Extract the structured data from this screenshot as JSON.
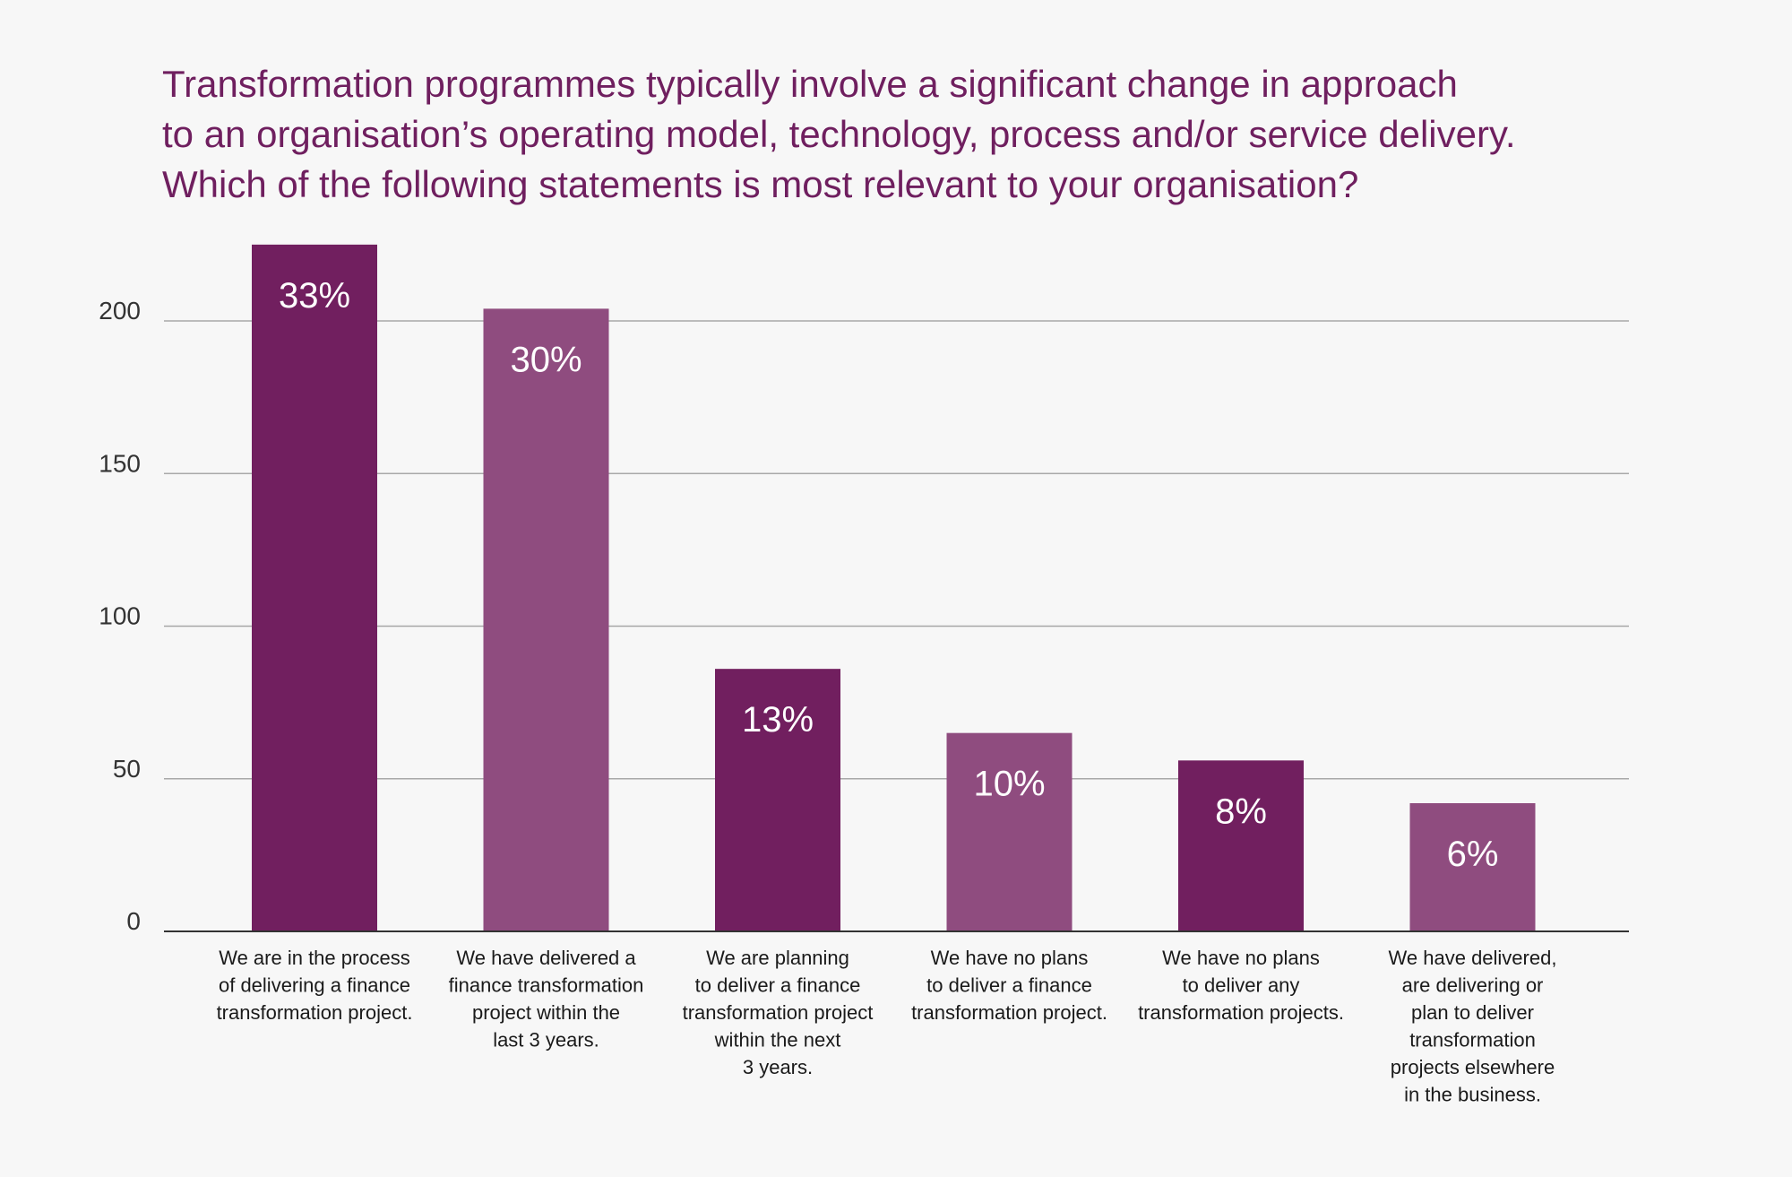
{
  "title_lines": [
    "Transformation programmes typically involve a significant change in approach",
    "to an organisation’s operating model, technology, process and/or service delivery.",
    "Which of the following statements is most relevant to your organisation?"
  ],
  "colors": {
    "dark": "#711f5f",
    "light": "#8f4c7f",
    "title": "#6f1f5f",
    "grid": "#a8a8a8",
    "axis": "#333333"
  },
  "chart_data": {
    "type": "bar",
    "title": "Transformation programmes typically involve a significant change in approach to an organisation’s operating model, technology, process and/or service delivery. Which of the following statements is most relevant to your organisation?",
    "xlabel": "",
    "ylabel": "",
    "ylim": [
      0,
      200
    ],
    "yticks": [
      0,
      50,
      100,
      150,
      200
    ],
    "grid": true,
    "categories": [
      [
        "We are in the process",
        "of delivering a finance",
        "transformation project."
      ],
      [
        "We have delivered a",
        "finance transformation",
        "project within the",
        "last 3 years."
      ],
      [
        "We are planning",
        "to deliver a finance",
        "transformation project",
        "within the next",
        "3 years."
      ],
      [
        "We have no plans",
        "to deliver a finance",
        "transformation project."
      ],
      [
        "We have no plans",
        "to deliver any",
        "transformation projects."
      ],
      [
        "We have delivered,",
        "are delivering or",
        "plan to deliver",
        "transformation",
        "projects elsewhere",
        "in the business."
      ]
    ],
    "values": [
      225,
      204,
      86,
      65,
      56,
      42
    ],
    "data_labels": [
      "33%",
      "30%",
      "13%",
      "10%",
      "8%",
      "6%"
    ],
    "bar_colors": [
      "#711f5f",
      "#8f4c7f",
      "#711f5f",
      "#8f4c7f",
      "#711f5f",
      "#8f4c7f"
    ]
  }
}
